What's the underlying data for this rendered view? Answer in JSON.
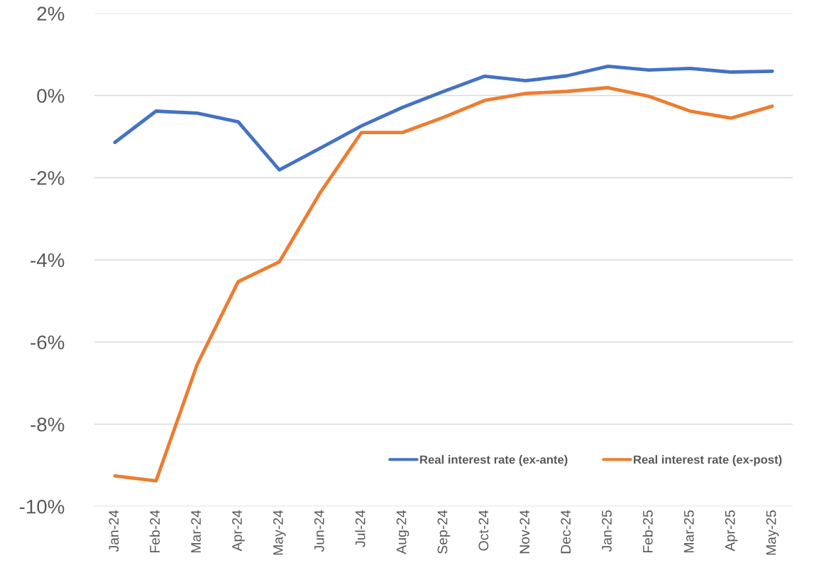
{
  "chart_data": {
    "type": "line",
    "categories": [
      "Jan-24",
      "Feb-24",
      "Mar-24",
      "Apr-24",
      "May-24",
      "Jun-24",
      "Jul-24",
      "Aug-24",
      "Sep-24",
      "Oct-24",
      "Nov-24",
      "Dec-24",
      "Jan-25",
      "Feb-25",
      "Mar-25",
      "Apr-25",
      "May-25"
    ],
    "series": [
      {
        "name": "Real interest rate (ex-ante)",
        "color": "#4472c4",
        "values": [
          -1.14,
          -0.38,
          -0.43,
          -0.64,
          -1.81,
          -1.28,
          -0.74,
          -0.29,
          0.1,
          0.47,
          0.36,
          0.48,
          0.71,
          0.62,
          0.66,
          0.57,
          0.59
        ]
      },
      {
        "name": "Real interest rate (ex-post)",
        "color": "#ed7d31",
        "values": [
          -9.26,
          -9.38,
          -6.55,
          -4.53,
          -4.05,
          -2.36,
          -0.9,
          -0.9,
          -0.53,
          -0.12,
          0.05,
          0.1,
          0.19,
          -0.02,
          -0.38,
          -0.55,
          -0.26
        ]
      }
    ],
    "ylim": [
      -10,
      2
    ],
    "yticks": [
      {
        "value": -10,
        "label": "-10%"
      },
      {
        "value": -8,
        "label": "-8%"
      },
      {
        "value": -6,
        "label": "-6%"
      },
      {
        "value": -4,
        "label": "-4%"
      },
      {
        "value": -2,
        "label": "-2%"
      },
      {
        "value": 0,
        "label": "0%"
      },
      {
        "value": 2,
        "label": "2%"
      }
    ],
    "grid": "y",
    "legend": "bottom right",
    "marker": "none",
    "line_style": "solid"
  }
}
